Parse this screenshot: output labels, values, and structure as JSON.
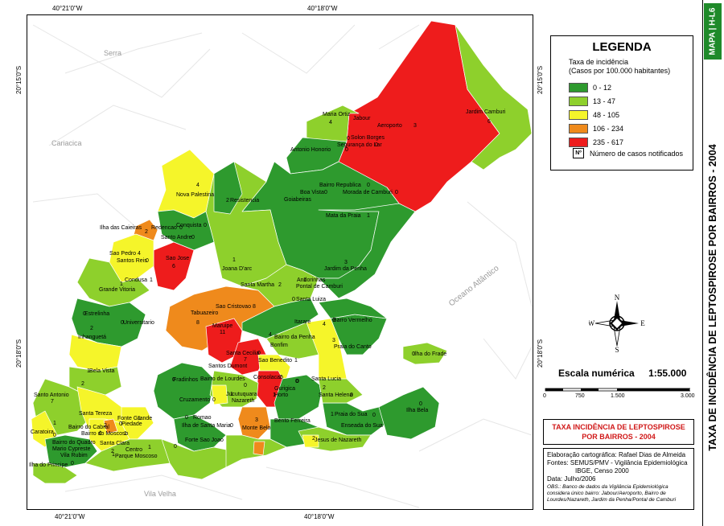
{
  "coordinates": {
    "top_left": "40°21'0\"W",
    "top_right": "40°18'0\"W",
    "bottom_left": "40°21'0\"W",
    "bottom_right": "40°18'0\"W",
    "left_upper": "20°15'0\"S",
    "left_lower": "20°18'0\"S",
    "right_upper": "20°15'0\"S",
    "right_lower": "20°18'0\"S"
  },
  "places": {
    "serra": "Serra",
    "cariacica": "Cariacica",
    "vila_velha": "Vila Velha",
    "oceano": "Oceano Atlântico"
  },
  "colors": {
    "class1": "#2e9a2e",
    "class2": "#8ed02c",
    "class3": "#f5f52a",
    "class4": "#ef8a1c",
    "class5": "#ee1c1c"
  },
  "neighborhoods": [
    {
      "name": "Maria Ortiz",
      "cases": "4"
    },
    {
      "name": "Jabour",
      "cases": ""
    },
    {
      "name": "Aeroporto",
      "cases": "3"
    },
    {
      "name": "Jardim Camburi",
      "cases": "6"
    },
    {
      "name": "Antonio Honorio",
      "cases": "0"
    },
    {
      "name": "Solon Borges",
      "cases": "0"
    },
    {
      "name": "Segurança do Lar",
      "cases": "0"
    },
    {
      "name": "Bairro Republica",
      "cases": "0"
    },
    {
      "name": "Boa Vista",
      "cases": "0"
    },
    {
      "name": "Morada de Camburi",
      "cases": "0"
    },
    {
      "name": "Goiabeiras",
      "cases": ""
    },
    {
      "name": "Mata da Praia",
      "cases": "1"
    },
    {
      "name": "Nova Palestina",
      "cases": "4"
    },
    {
      "name": "Resistencia",
      "cases": "2"
    },
    {
      "name": "Ilha das Caieiras",
      "cases": "2"
    },
    {
      "name": "Redencao",
      "cases": "0"
    },
    {
      "name": "Conquista",
      "cases": "0"
    },
    {
      "name": "Santo Andre",
      "cases": "0"
    },
    {
      "name": "Sao Pedro",
      "cases": "4"
    },
    {
      "name": "Santos Reis",
      "cases": "0"
    },
    {
      "name": "Sao Jose",
      "cases": "6"
    },
    {
      "name": "Joana D'arc",
      "cases": "1"
    },
    {
      "name": "Jardim da Penha",
      "cases": "3"
    },
    {
      "name": "Condusa",
      "cases": "1"
    },
    {
      "name": "Grande Vitoria",
      "cases": "1"
    },
    {
      "name": "Santa Martha",
      "cases": "2"
    },
    {
      "name": "Andorinhas",
      "cases": "1"
    },
    {
      "name": "Pontal de Camburi",
      "cases": ""
    },
    {
      "name": "Santa Luiza",
      "cases": "0"
    },
    {
      "name": "Estrelinha",
      "cases": "0"
    },
    {
      "name": "Universitario",
      "cases": "0"
    },
    {
      "name": "Tabuazeiro",
      "cases": "8"
    },
    {
      "name": "Sao Cristovao",
      "cases": "8"
    },
    {
      "name": "Barro Vermelho",
      "cases": "0"
    },
    {
      "name": "Maruipe",
      "cases": "11"
    },
    {
      "name": "Itarare",
      "cases": "4"
    },
    {
      "name": "Bairro da Penha",
      "cases": "4"
    },
    {
      "name": "Praia do Canto",
      "cases": "3"
    },
    {
      "name": "Inhanguetá",
      "cases": "2"
    },
    {
      "name": "Bonfim",
      "cases": ""
    },
    {
      "name": "Santa Cecilia",
      "cases": "0"
    },
    {
      "name": "Ilha do Frade",
      "cases": "0"
    },
    {
      "name": "Santos Dumont",
      "cases": "7"
    },
    {
      "name": "Sao Benedito",
      "cases": "1"
    },
    {
      "name": "Bela Vista",
      "cases": "1"
    },
    {
      "name": "Fradinhos",
      "cases": "0"
    },
    {
      "name": "Bairro de Lourdes",
      "cases": ""
    },
    {
      "name": "Consolacao",
      "cases": "7"
    },
    {
      "name": "Santa Lucia",
      "cases": "2"
    },
    {
      "name": "Gurigica",
      "cases": "0"
    },
    {
      "name": "Santo Antonio",
      "cases": "7"
    },
    {
      "name": "Cruzamento",
      "cases": "0"
    },
    {
      "name": "Jucutuquara",
      "cases": "1"
    },
    {
      "name": "Nazareth",
      "cases": "0"
    },
    {
      "name": "Horto",
      "cases": "1"
    },
    {
      "name": "Santa Helena",
      "cases": "0"
    },
    {
      "name": "Santa Tereza",
      "cases": "2"
    },
    {
      "name": "Fonte Grande",
      "cases": "1"
    },
    {
      "name": "Romao",
      "cases": "0"
    },
    {
      "name": "Praia do Sua",
      "cases": "1"
    },
    {
      "name": "Ilha Bela",
      "cases": "0"
    },
    {
      "name": "Caratoira",
      "cases": "1"
    },
    {
      "name": "Bairro do Cabral",
      "cases": "2"
    },
    {
      "name": "Piedade",
      "cases": "0"
    },
    {
      "name": "Ilha de Santa Maria",
      "cases": "0"
    },
    {
      "name": "Monte Belo",
      "cases": "3"
    },
    {
      "name": "Bento Ferreira",
      "cases": "0"
    },
    {
      "name": "Enseada do Sua",
      "cases": "0"
    },
    {
      "name": "Bairro do Quadro",
      "cases": "0"
    },
    {
      "name": "Bairro do Moscoso",
      "cases": "1"
    },
    {
      "name": "Mario Cypreste",
      "cases": "0"
    },
    {
      "name": "Santa Clara",
      "cases": ""
    },
    {
      "name": "Vila Rubim",
      "cases": "1"
    },
    {
      "name": "Forte Sao Joao",
      "cases": "0"
    },
    {
      "name": "Jesus de Nazareth",
      "cases": "2"
    },
    {
      "name": "Centro",
      "cases": "1"
    },
    {
      "name": "Parque Moscoso",
      "cases": "2"
    },
    {
      "name": "Ilha do Principe",
      "cases": "0"
    }
  ],
  "legend": {
    "title": "LEGENDA",
    "subtitle_line1": "Taxa de incidência",
    "subtitle_line2": "(Casos por 100.000 habitantes)",
    "classes": [
      {
        "range": "0 - 12",
        "color": "#2e9a2e"
      },
      {
        "range": "13 - 47",
        "color": "#8ed02c"
      },
      {
        "range": "48 - 105",
        "color": "#f5f52a"
      },
      {
        "range": "106 - 234",
        "color": "#ef8a1c"
      },
      {
        "range": "235 - 617",
        "color": "#ee1c1c"
      }
    ],
    "note_symbol": "Nº",
    "note_text": "Número de casos notificados"
  },
  "compass": {
    "n": "N",
    "s": "S",
    "e": "E",
    "w": "W"
  },
  "scale": {
    "label": "Escala numérica",
    "value": "1:55.000",
    "ticks": [
      "0",
      "750",
      "1.500",
      "3.000"
    ]
  },
  "map_title": {
    "line1": "TAXA INCIDÊNCIA DE LEPTOSPIROSE",
    "line2": "POR BAIRROS - 2004"
  },
  "credits": {
    "line1": "Elaboração cartográfica: Rafael Dias de Almeida",
    "line2": "Fontes: SEMUS/PMV - Vigilância Epidemiológica",
    "line3": "IBGE, Censo 2000",
    "line4": "Data: Julho/2006",
    "obs": "OBS.: Banco de dados da Vigilância Epidemiológica considera único bairro: Jabour/Aeroporto, Bairro de Lourdes/Nazareth, Jardim da Penha/Pontal de Camburi"
  },
  "side": {
    "tag": "MAPA | H-L6",
    "title": "TAXA DE INCIDÊNCIA DE LEPTOSPIROSE POR BAIRROS - 2004"
  }
}
